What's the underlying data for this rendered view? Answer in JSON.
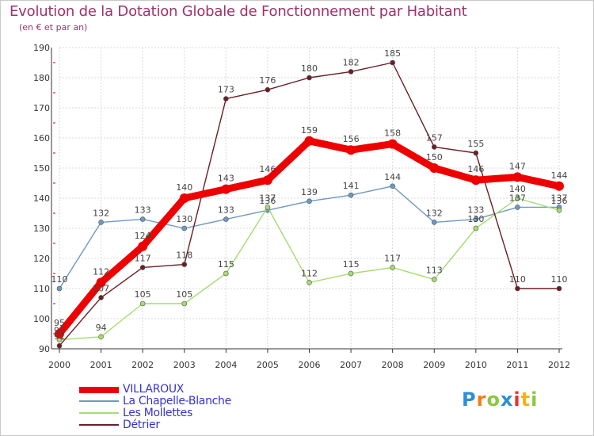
{
  "title": "Evolution de la Dotation Globale de Fonctionnement par Habitant",
  "subtitle": "(en € et par an)",
  "chart_data": {
    "type": "line",
    "title": "Evolution de la Dotation Globale de Fonctionnement par Habitant",
    "subtitle": "(en € et par an)",
    "xlabel": "",
    "ylabel": "",
    "ylim": [
      90,
      190
    ],
    "yticks": [
      90,
      100,
      110,
      120,
      130,
      140,
      150,
      160,
      170,
      180,
      190
    ],
    "x": [
      "2000",
      "2001",
      "2002",
      "2003",
      "2004",
      "2005",
      "2006",
      "2007",
      "2008",
      "2009",
      "2010",
      "2011",
      "2012"
    ],
    "series": [
      {
        "name": "VILLAROUX",
        "color": "#ee0000",
        "values": [
          95,
          112,
          124,
          140,
          143,
          146,
          159,
          156,
          158,
          150,
          146,
          147,
          144
        ]
      },
      {
        "name": "La Chapelle-Blanche",
        "color": "#6d99c3",
        "values": [
          110,
          132,
          133,
          130,
          133,
          136,
          139,
          141,
          144,
          132,
          133,
          137,
          137
        ]
      },
      {
        "name": "Les Mollettes",
        "color": "#a6dc70",
        "values": [
          93,
          94,
          105,
          105,
          115,
          137,
          112,
          115,
          117,
          113,
          130,
          140,
          136
        ]
      },
      {
        "name": "Détrier",
        "color": "#6a1e25",
        "values": [
          91,
          107,
          117,
          118,
          173,
          176,
          180,
          182,
          185,
          157,
          155,
          110,
          110
        ]
      }
    ]
  },
  "logo": {
    "letters": [
      "P",
      "r",
      "o",
      "x",
      "i",
      "t",
      "i"
    ],
    "colors": [
      "#2a8fd6",
      "#ef7d1a",
      "#8ec63f",
      "#2a8fd6",
      "#e5342e",
      "#f3b21a",
      "#8ec63f"
    ]
  }
}
